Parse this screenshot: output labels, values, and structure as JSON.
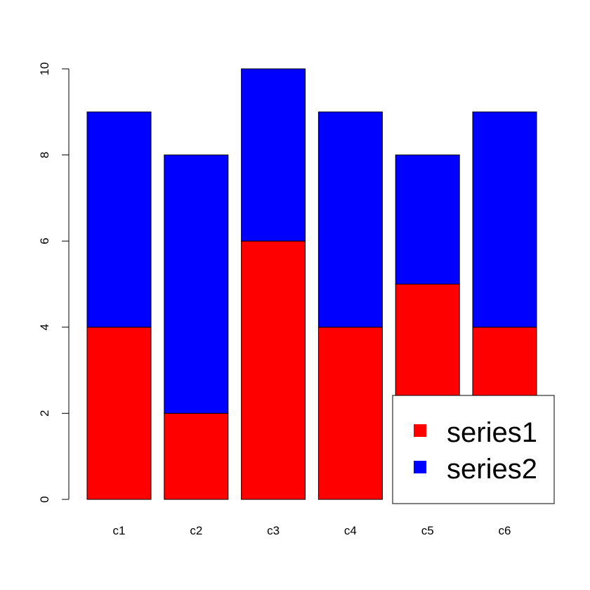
{
  "chart_data": {
    "type": "bar",
    "stacked": true,
    "categories": [
      "c1",
      "c2",
      "c3",
      "c4",
      "c5",
      "c6"
    ],
    "series": [
      {
        "name": "series1",
        "color": "#ff0000",
        "values": [
          4,
          2,
          6,
          4,
          5,
          4
        ]
      },
      {
        "name": "series2",
        "color": "#0000ff",
        "values": [
          5,
          6,
          4,
          5,
          3,
          5
        ]
      }
    ],
    "ylim": [
      0,
      10
    ],
    "yticks": [
      "0",
      "2",
      "4",
      "6",
      "8",
      "10"
    ],
    "title": "",
    "xlabel": "",
    "ylabel": "",
    "legend": {
      "position": "bottom-right"
    },
    "grid": false
  }
}
